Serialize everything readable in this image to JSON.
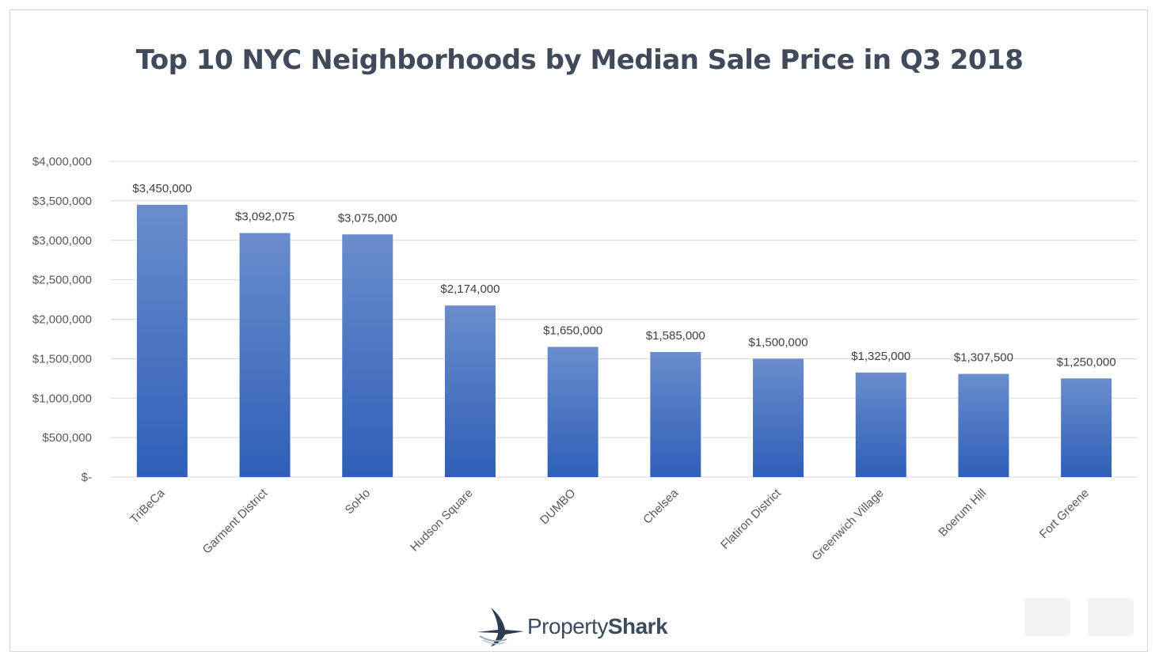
{
  "chart_data": {
    "type": "bar",
    "title": "Top 10 NYC Neighborhoods by Median Sale Price in Q3 2018",
    "xlabel": "",
    "ylabel": "",
    "ylim": [
      0,
      4000000
    ],
    "grid": true,
    "categories": [
      "TriBeCa",
      "Garment District",
      "SoHo",
      "Hudson Square",
      "DUMBO",
      "Chelsea",
      "Flatiron District",
      "Greenwich Village",
      "Boerum Hill",
      "Fort Greene"
    ],
    "values": [
      3450000,
      3092075,
      3075000,
      2174000,
      1650000,
      1585000,
      1500000,
      1325000,
      1307500,
      1250000
    ],
    "data_labels": [
      "$3,450,000",
      "$3,092,075",
      "$3,075,000",
      "$2,174,000",
      "$1,650,000",
      "$1,585,000",
      "$1,500,000",
      "$1,325,000",
      "$1,307,500",
      "$1,250,000"
    ],
    "y_ticks": [
      0,
      500000,
      1000000,
      1500000,
      2000000,
      2500000,
      3000000,
      3500000,
      4000000
    ],
    "y_tick_labels": [
      "$-",
      "$500,000",
      "$1,000,000",
      "$1,500,000",
      "$2,000,000",
      "$2,500,000",
      "$3,000,000",
      "$3,500,000",
      "$4,000,000"
    ],
    "bar_color_top": "#6a8dcc",
    "bar_color_bottom": "#2e5fb8"
  },
  "logo": {
    "prefix": "Property",
    "suffix": "Shark",
    "name": "PropertyShark"
  },
  "colors": {
    "title": "#404a5a",
    "grid": "#d9d9d9",
    "text": "#595959"
  }
}
